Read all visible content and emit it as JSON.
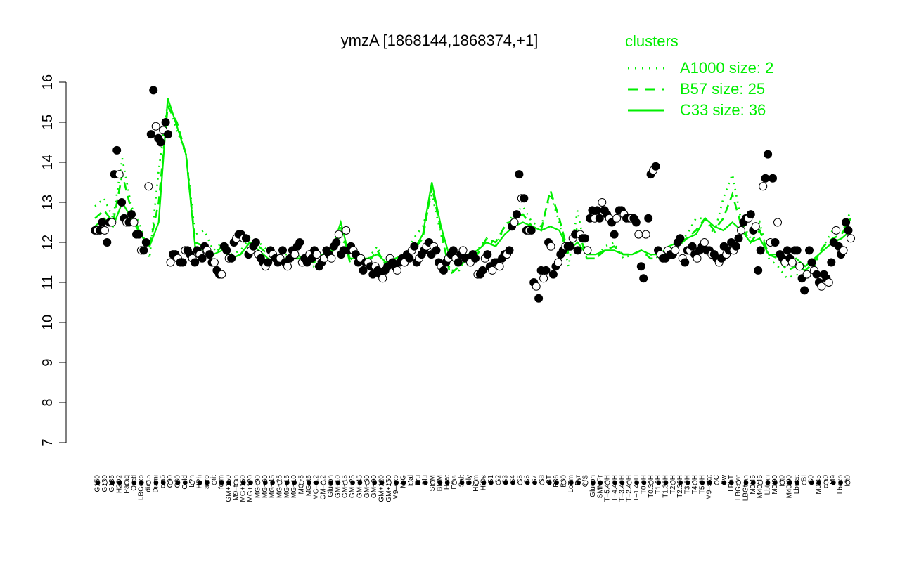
{
  "chart_data": {
    "type": "scatter",
    "title": "ymzA [1868144,1868374,+1]",
    "xlabel": "",
    "ylabel": "",
    "ylim": [
      7,
      16
    ],
    "yticks": [
      7,
      8,
      9,
      10,
      11,
      12,
      13,
      14,
      15,
      16
    ],
    "grid": false,
    "legend_position": "top-right",
    "colors": {
      "points": "#000000",
      "lines": "#00ee00",
      "legend_text": "#00ee00"
    },
    "legend": {
      "title": "clusters",
      "entries": [
        {
          "label": "A1000 size: 2",
          "style": "dotted"
        },
        {
          "label": "B57 size: 25",
          "style": "dashed"
        },
        {
          "label": "C33 size: 36",
          "style": "solid"
        }
      ]
    },
    "xtick_labels": [
      "G150",
      "G180",
      "G135",
      "H2O2",
      "Paraq",
      "Oxctl",
      "LBGexp",
      "dia15",
      "Diami",
      "dia5",
      "C90",
      "C30",
      "Cold",
      "LPh",
      "HPh",
      "aero",
      "nit",
      "ferm",
      "GM+150",
      "M9–tran",
      "MG+150",
      "MG+120",
      "MG+90",
      "MG+60",
      "MG+45",
      "MG+25",
      "MG+15",
      "MG+10",
      "MG+5",
      "MG+t5",
      "MG–0.2",
      "GM–0.2",
      "Glucon",
      "GM+10",
      "GM+15",
      "GM+25",
      "GM+45",
      "GM+60",
      "GM+90",
      "GM+120",
      "GM+150",
      "M9–exp",
      "M/G",
      "Mal",
      "Fru",
      "Glu",
      "SMM",
      "BMM",
      "Heat",
      "Etha",
      "Salt",
      "Gly",
      "HiTm",
      "HiOs",
      "S1",
      "S2",
      "S3",
      "S4",
      "S5",
      "S6",
      "S7",
      "S8",
      "BT",
      "B36",
      "B60",
      "LoTm",
      "Pyr",
      "G/S",
      "Glucon",
      "SMMPr",
      "T–5.40H",
      "T–4.40H",
      "T–3.40H",
      "T–2.40H",
      "T–1.40H",
      "T0.0H",
      "T0.30H",
      "T1.0H",
      "T1.30H",
      "T2.0H",
      "T2.30H",
      "T3.0H",
      "T4.0H",
      "T5.0H",
      "M9–stat",
      "BC",
      "Sw",
      "LPhT",
      "LBGstat",
      "LBGtran",
      "M0t45",
      "M40t45",
      "Lbtran",
      "M0t90",
      "Mt0",
      "M40t90",
      "Lbstat",
      "BI",
      "S0",
      "M0t45",
      "dia0",
      "M9",
      "Lbexp",
      "Mt0"
    ],
    "series": [
      {
        "name": "points",
        "values": [
          12.3,
          12.3,
          12.3,
          12.5,
          12.3,
          12.0,
          12.5,
          12.5,
          13.7,
          14.3,
          13.7,
          13.0,
          12.6,
          12.5,
          12.5,
          12.7,
          12.5,
          12.2,
          12.2,
          11.8,
          11.8,
          12.0,
          13.4,
          14.7,
          15.8,
          14.9,
          14.6,
          14.5,
          14.8,
          15.0,
          14.7,
          11.5,
          11.7,
          11.7,
          11.6,
          11.5,
          11.5,
          11.8,
          11.8,
          11.7,
          11.6,
          11.5,
          11.8,
          11.7,
          11.6,
          11.9,
          11.8,
          11.7,
          11.5,
          11.5,
          11.3,
          11.2,
          11.2,
          11.9,
          11.8,
          11.6,
          11.6,
          12.0,
          12.1,
          12.2,
          12.2,
          12.1,
          12.1,
          11.7,
          11.8,
          11.9,
          12.0,
          11.7,
          11.6,
          11.5,
          11.4,
          11.5,
          11.8,
          11.7,
          11.6,
          11.5,
          11.6,
          11.8,
          11.5,
          11.4,
          11.6,
          11.8,
          11.7,
          11.9,
          12.0,
          11.5,
          11.6,
          11.5,
          11.7,
          11.6,
          11.8,
          11.7,
          11.4,
          11.5,
          11.6,
          11.8,
          11.7,
          11.6,
          11.9,
          12.0,
          12.2,
          11.7,
          11.8,
          12.3,
          11.8,
          11.9,
          11.8,
          11.7,
          11.5,
          11.6,
          11.3,
          11.5,
          11.5,
          11.4,
          11.2,
          11.4,
          11.3,
          11.2,
          11.1,
          11.3,
          11.4,
          11.6,
          11.5,
          11.4,
          11.3,
          11.5,
          11.6,
          11.5,
          11.7,
          11.6,
          11.8,
          11.9,
          11.5,
          11.6,
          11.7,
          11.8,
          11.9,
          12.0,
          11.7,
          11.9,
          11.8,
          11.5,
          11.4,
          11.3,
          11.5,
          11.6,
          11.7,
          11.8,
          11.6,
          11.5,
          11.7,
          11.8,
          11.6,
          11.6,
          11.5,
          11.7,
          11.6,
          11.2,
          11.2,
          11.3,
          11.6,
          11.7,
          11.4,
          11.3,
          11.5,
          11.5,
          11.4,
          11.6,
          11.7,
          11.7,
          11.8,
          12.4,
          12.5,
          12.7,
          13.7,
          13.1,
          13.1,
          12.3,
          12.3,
          12.3,
          11.0,
          10.9,
          10.6,
          11.3,
          11.1,
          11.3,
          12.0,
          11.9,
          11.2,
          11.4,
          11.5,
          11.7,
          11.8,
          11.9,
          11.9,
          11.9,
          12.1,
          12.2,
          11.8,
          12.2,
          12.1,
          12.1,
          11.8,
          12.6,
          12.8,
          12.6,
          12.8,
          12.6,
          13.0,
          12.8,
          12.7,
          12.6,
          12.5,
          12.2,
          12.6,
          12.8,
          12.8,
          12.7,
          12.6,
          12.6,
          12.6,
          12.6,
          12.5,
          12.2,
          11.4,
          11.1,
          12.2,
          12.6,
          13.7,
          13.8,
          13.9,
          11.8,
          11.7,
          11.6,
          11.6,
          11.8,
          11.7,
          11.7,
          11.8,
          12.0,
          12.1,
          11.6,
          11.5,
          11.8,
          11.8,
          11.9,
          11.7,
          11.6,
          11.8,
          11.9,
          12.0,
          11.8,
          11.8,
          11.7,
          11.7,
          11.6,
          11.5,
          11.6,
          11.9,
          11.7,
          11.8,
          12.0,
          11.8,
          11.9,
          12.1,
          12.3,
          12.5,
          12.6,
          12.6,
          12.7,
          12.3,
          12.4,
          11.3,
          11.8,
          13.4,
          13.6,
          14.2,
          12.0,
          13.6,
          12.0,
          12.5,
          11.7,
          11.6,
          11.5,
          11.8,
          11.6,
          11.5,
          11.8,
          11.8,
          11.4,
          11.1,
          10.8,
          11.2,
          11.8,
          11.5,
          11.3,
          11.2,
          11.0,
          10.9,
          11.2,
          11.1,
          11.0,
          11.5,
          12.0,
          12.3,
          11.9,
          11.7,
          11.8,
          12.5,
          12.3,
          12.1
        ]
      }
    ],
    "clusters": [
      {
        "name": "A1000 size: 2",
        "style": "dotted",
        "values": [
          12.9,
          13.1,
          12.6,
          14.1,
          12.9,
          12.4,
          11.6,
          13.8,
          15.5,
          14.8,
          14.2,
          12.2,
          12.3,
          11.8,
          12.0,
          11.7,
          11.8,
          12.1,
          12.0,
          11.8,
          11.6,
          11.7,
          11.6,
          11.6,
          11.4,
          11.6,
          11.8,
          12.2,
          11.6,
          11.5,
          11.6,
          11.9,
          11.4,
          11.6,
          11.6,
          12.1,
          12.4,
          13.2,
          12.2,
          11.3,
          11.3,
          11.7,
          11.8,
          12.1,
          11.9,
          12.4,
          12.7,
          12.9,
          12.5,
          12.4,
          13.2,
          12.5,
          11.4,
          12.8,
          11.6,
          11.6,
          11.9,
          12.0,
          11.6,
          11.7,
          11.8,
          11.7,
          11.6,
          11.8,
          11.9,
          12.2,
          12.6,
          12.6,
          12.2,
          13.1,
          13.7,
          12.5,
          12.1,
          12.5,
          11.6,
          11.4,
          11.1,
          11.2,
          11.1,
          11.4,
          11.9,
          12.3,
          12.2,
          12.8
        ]
      },
      {
        "name": "B57 size: 25",
        "style": "dashed",
        "values": [
          12.6,
          12.8,
          12.5,
          13.7,
          12.8,
          12.2,
          11.9,
          13.0,
          15.4,
          15.0,
          14.2,
          12.0,
          11.9,
          11.7,
          11.9,
          11.6,
          11.7,
          12.0,
          11.9,
          11.7,
          11.5,
          11.6,
          11.6,
          11.6,
          11.5,
          11.6,
          11.7,
          12.4,
          11.5,
          11.5,
          11.5,
          11.8,
          11.4,
          11.6,
          11.6,
          11.8,
          12.1,
          13.4,
          12.3,
          11.2,
          11.4,
          11.6,
          11.7,
          12.1,
          12.0,
          12.4,
          12.6,
          12.7,
          12.4,
          12.3,
          13.3,
          12.6,
          11.7,
          12.4,
          11.6,
          11.6,
          11.8,
          11.9,
          11.7,
          11.7,
          11.8,
          11.6,
          11.6,
          11.8,
          11.9,
          12.1,
          12.3,
          12.6,
          12.3,
          12.6,
          13.2,
          12.4,
          12.0,
          12.3,
          11.7,
          11.6,
          11.3,
          11.4,
          11.3,
          11.5,
          11.9,
          12.1,
          12.2,
          12.6
        ]
      },
      {
        "name": "C33 size: 36",
        "style": "solid",
        "values": [
          12.4,
          12.6,
          12.4,
          13.0,
          12.6,
          12.2,
          11.9,
          12.5,
          15.6,
          14.9,
          14.2,
          11.9,
          11.8,
          11.7,
          11.8,
          11.6,
          11.7,
          12.0,
          11.8,
          11.6,
          11.5,
          11.6,
          11.7,
          11.6,
          11.6,
          11.7,
          11.8,
          12.5,
          11.6,
          11.6,
          11.6,
          11.7,
          11.5,
          11.6,
          11.7,
          11.8,
          12.2,
          13.5,
          12.4,
          11.6,
          11.6,
          11.7,
          11.8,
          12.0,
          11.9,
          12.2,
          12.4,
          12.5,
          12.4,
          12.3,
          12.4,
          12.3,
          11.8,
          12.0,
          11.7,
          11.7,
          11.8,
          11.8,
          11.7,
          11.7,
          11.8,
          11.7,
          11.7,
          11.9,
          12.0,
          12.1,
          12.2,
          12.6,
          12.4,
          12.3,
          12.5,
          12.3,
          12.0,
          12.1,
          11.7,
          11.7,
          11.5,
          11.6,
          11.4,
          11.6,
          11.8,
          12.0,
          12.1,
          12.3
        ]
      }
    ]
  }
}
